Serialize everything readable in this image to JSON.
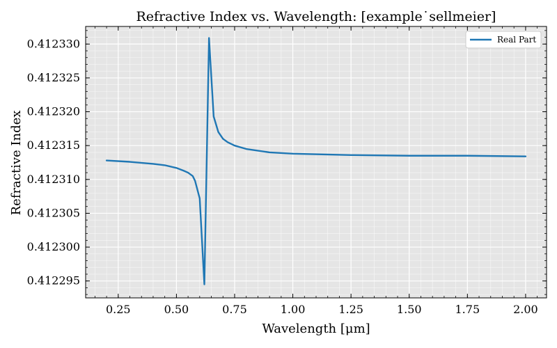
{
  "chart_data": {
    "type": "line",
    "title": "Refractive Index vs. Wavelength: [example˙sellmeier]",
    "xlabel": "Wavelength [μm]",
    "ylabel": "Refractive Index",
    "xlim": [
      0.11,
      2.09
    ],
    "ylim": [
      0.4122925,
      0.4123326
    ],
    "xticks": [
      0.25,
      0.5,
      0.75,
      1.0,
      1.25,
      1.5,
      1.75,
      2.0
    ],
    "xtick_labels": [
      "0.25",
      "0.50",
      "0.75",
      "1.00",
      "1.25",
      "1.50",
      "1.75",
      "2.00"
    ],
    "yticks": [
      0.412295,
      0.4123,
      0.412305,
      0.41231,
      0.412315,
      0.41232,
      0.412325,
      0.41233
    ],
    "ytick_labels": [
      "0.412295",
      "0.412300",
      "0.412305",
      "0.412310",
      "0.412315",
      "0.412320",
      "0.412325",
      "0.412330"
    ],
    "grid": true,
    "legend_position": "top-right",
    "colors": {
      "series": "#1f77b4",
      "background": "#e5e5e5",
      "grid": "#ffffff"
    },
    "series": [
      {
        "name": "Real Part",
        "x": [
          0.2,
          0.3,
          0.4,
          0.45,
          0.5,
          0.53,
          0.55,
          0.57,
          0.58,
          0.6,
          0.62,
          0.64,
          0.66,
          0.68,
          0.7,
          0.72,
          0.75,
          0.8,
          0.9,
          1.0,
          1.25,
          1.5,
          1.75,
          2.0
        ],
        "y": [
          0.4123128,
          0.4123126,
          0.4123123,
          0.4123121,
          0.4123117,
          0.4123113,
          0.412311,
          0.4123105,
          0.4123098,
          0.4123072,
          0.4122945,
          0.4123309,
          0.4123193,
          0.412317,
          0.412316,
          0.4123155,
          0.412315,
          0.4123145,
          0.412314,
          0.4123138,
          0.4123136,
          0.4123135,
          0.4123135,
          0.4123134
        ]
      }
    ]
  }
}
